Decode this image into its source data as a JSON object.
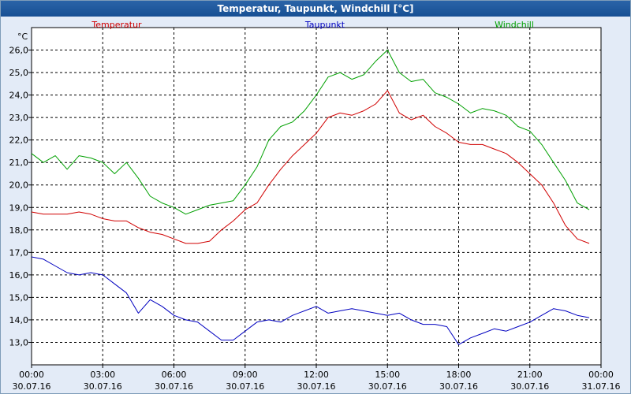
{
  "chart_data": {
    "type": "line",
    "title": "Temperatur, Taupunkt, Windchill [°C]",
    "y_unit": "°C",
    "ylim": [
      12.0,
      27.0
    ],
    "y_ticks": [
      "13,0",
      "14,0",
      "15,0",
      "16,0",
      "17,0",
      "18,0",
      "19,0",
      "20,0",
      "21,0",
      "22,0",
      "23,0",
      "24,0",
      "25,0",
      "26,0"
    ],
    "y_tick_values": [
      13,
      14,
      15,
      16,
      17,
      18,
      19,
      20,
      21,
      22,
      23,
      24,
      25,
      26
    ],
    "x_ticks": [
      {
        "time": "00:00",
        "date": "30.07.16"
      },
      {
        "time": "03:00",
        "date": "30.07.16"
      },
      {
        "time": "06:00",
        "date": "30.07.16"
      },
      {
        "time": "09:00",
        "date": "30.07.16"
      },
      {
        "time": "12:00",
        "date": "30.07.16"
      },
      {
        "time": "15:00",
        "date": "30.07.16"
      },
      {
        "time": "18:00",
        "date": "30.07.16"
      },
      {
        "time": "21:00",
        "date": "30.07.16"
      },
      {
        "time": "00:00",
        "date": "31.07.16"
      }
    ],
    "x_hours": [
      0,
      0.5,
      1,
      1.5,
      2,
      2.5,
      3,
      3.5,
      4,
      4.5,
      5,
      5.5,
      6,
      6.5,
      7,
      7.5,
      8,
      8.5,
      9,
      9.5,
      10,
      10.5,
      11,
      11.5,
      12,
      12.5,
      13,
      13.5,
      14,
      14.5,
      15,
      15.5,
      16,
      16.5,
      17,
      17.5,
      18,
      18.5,
      19,
      19.5,
      20,
      20.5,
      21,
      21.5,
      22,
      22.5,
      23,
      23.5
    ],
    "grid": true,
    "series": [
      {
        "name": "Temperatur",
        "color": "#d00000",
        "values": [
          18.8,
          18.7,
          18.7,
          18.7,
          18.8,
          18.7,
          18.5,
          18.4,
          18.4,
          18.1,
          17.9,
          17.8,
          17.6,
          17.4,
          17.4,
          17.5,
          18.0,
          18.4,
          18.9,
          19.2,
          20.0,
          20.7,
          21.3,
          21.8,
          22.3,
          23.0,
          23.2,
          23.1,
          23.3,
          23.6,
          24.2,
          23.2,
          22.9,
          23.1,
          22.6,
          22.3,
          21.9,
          21.8,
          21.8,
          21.6,
          21.4,
          21.0,
          20.5,
          20.0,
          19.2,
          18.2,
          17.6,
          17.4
        ]
      },
      {
        "name": "Taupunkt",
        "color": "#0000c0",
        "values": [
          16.8,
          16.7,
          16.4,
          16.1,
          16.0,
          16.1,
          16.0,
          15.6,
          15.2,
          14.3,
          14.9,
          14.6,
          14.2,
          14.0,
          13.9,
          13.5,
          13.1,
          13.1,
          13.5,
          13.9,
          14.0,
          13.9,
          14.2,
          14.4,
          14.6,
          14.3,
          14.4,
          14.5,
          14.4,
          14.3,
          14.2,
          14.3,
          14.0,
          13.8,
          13.8,
          13.7,
          12.9,
          13.2,
          13.4,
          13.6,
          13.5,
          13.7,
          13.9,
          14.2,
          14.5,
          14.4,
          14.2,
          14.1
        ]
      },
      {
        "name": "Windchill",
        "color": "#00a000",
        "values": [
          21.4,
          21.0,
          21.3,
          20.7,
          21.3,
          21.2,
          21.0,
          20.5,
          21.0,
          20.3,
          19.5,
          19.2,
          19.0,
          18.7,
          18.9,
          19.1,
          19.2,
          19.3,
          20.0,
          20.8,
          22.0,
          22.6,
          22.8,
          23.3,
          24.0,
          24.8,
          25.0,
          24.7,
          24.9,
          25.5,
          26.0,
          25.0,
          24.6,
          24.7,
          24.1,
          23.9,
          23.6,
          23.2,
          23.4,
          23.3,
          23.1,
          22.6,
          22.4,
          21.8,
          21.0,
          20.2,
          19.2,
          18.9
        ]
      }
    ]
  }
}
